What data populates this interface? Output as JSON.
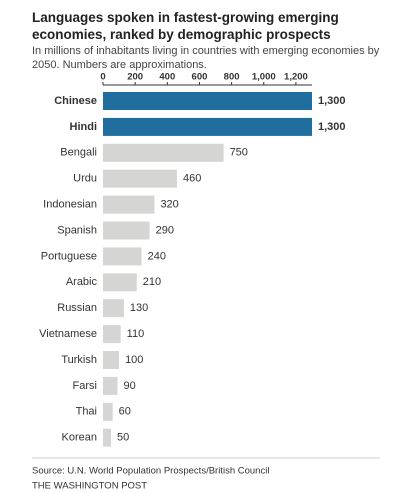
{
  "chart_data": {
    "type": "hbar",
    "title": "Languages spoken in fastest-growing emerging economies, ranked by demographic prospects",
    "subtitle": "In millions of inhabitants living in countries with emerging economies by 2050. Numbers are approximations.",
    "categories": [
      "Chinese",
      "Hindi",
      "Bengali",
      "Urdu",
      "Indonesian",
      "Spanish",
      "Portuguese",
      "Arabic",
      "Russian",
      "Vietnamese",
      "Turkish",
      "Farsi",
      "Thai",
      "Korean"
    ],
    "values": [
      1300,
      1300,
      750,
      460,
      320,
      290,
      240,
      210,
      130,
      110,
      100,
      90,
      60,
      50
    ],
    "value_labels": [
      "1,300",
      "1,300",
      "750",
      "460",
      "320",
      "290",
      "240",
      "210",
      "130",
      "110",
      "100",
      "90",
      "60",
      "50"
    ],
    "highlighted": [
      true,
      true,
      false,
      false,
      false,
      false,
      false,
      false,
      false,
      false,
      false,
      false,
      false,
      false
    ],
    "color": "#d5d5d3",
    "highlight_color": "#1f6e9e",
    "xlim": [
      0,
      1300
    ],
    "xticks": [
      0,
      200,
      400,
      600,
      800,
      {
        "value": 1000,
        "label": "1,000"
      },
      {
        "value": 1200,
        "label": "1,200"
      }
    ],
    "source": "Source: U.N. World Population Prospects/British Council",
    "credit": "THE WASHINGTON POST"
  }
}
